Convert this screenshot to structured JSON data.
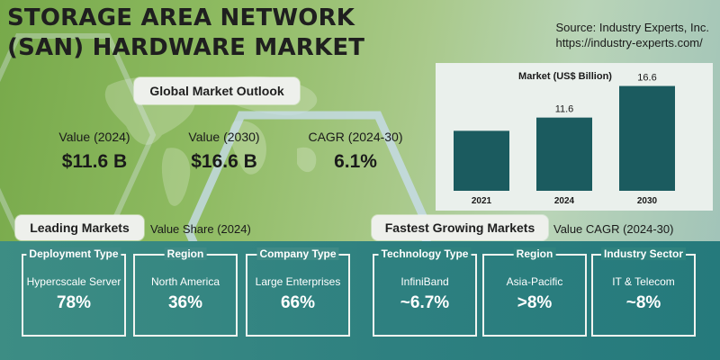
{
  "header": {
    "title_line1": "STORAGE AREA NETWORK",
    "title_line2": "(SAN) HARDWARE MARKET",
    "source_line1": "Source: Industry Experts, Inc.",
    "source_line2": "https://industry-experts.com/"
  },
  "outlook": {
    "label": "Global Market Outlook",
    "kpis": [
      {
        "label": "Value (2024)",
        "value": "$11.6 B"
      },
      {
        "label": "Value (2030)",
        "value": "$16.6 B"
      },
      {
        "label": "CAGR (2024-30)",
        "value": "6.1%"
      }
    ]
  },
  "chart_data": {
    "type": "bar",
    "title": "Market (US$ Billion)",
    "categories": [
      "2021",
      "2024",
      "2030"
    ],
    "values": [
      null,
      11.6,
      16.6
    ],
    "value_labels": [
      "",
      "11.6",
      "16.6"
    ],
    "ylim": [
      0,
      18
    ],
    "bar_color": "#1b5b5f",
    "background": "#eaf0ec",
    "grid": false
  },
  "leading": {
    "label": "Leading Markets",
    "subtitle": "Value Share (2024)",
    "cards": [
      {
        "caption": "Deployment Type",
        "name": "Hypercscale Server",
        "value": "78%"
      },
      {
        "caption": "Region",
        "name": "North America",
        "value": "36%"
      },
      {
        "caption": "Company Type",
        "name": "Large Enterprises",
        "value": "66%"
      }
    ]
  },
  "fastest": {
    "label": "Fastest Growing Markets",
    "subtitle": "Value CAGR (2024-30)",
    "cards": [
      {
        "caption": "Technology Type",
        "name": "InfiniBand",
        "value": "~6.7%"
      },
      {
        "caption": "Region",
        "name": "Asia-Pacific",
        "value": ">8%"
      },
      {
        "caption": "Industry Sector",
        "name": "IT & Telecom",
        "value": "~8%"
      }
    ]
  },
  "colors": {
    "teal_band": "#2e8080",
    "green_bg": "#8fbb62",
    "pill_bg": "#eef0ec"
  }
}
